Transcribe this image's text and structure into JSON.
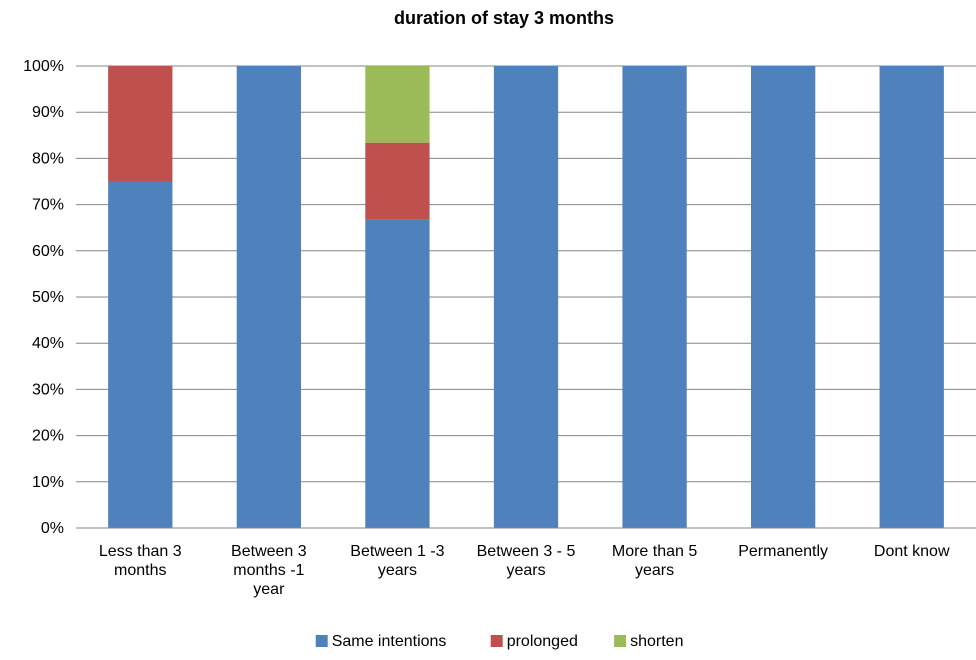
{
  "chart_data": {
    "type": "bar",
    "stacked": true,
    "title": "duration of stay 3 months",
    "xlabel": "",
    "ylabel": "",
    "ylim": [
      0,
      100
    ],
    "y_ticks": [
      "0%",
      "10%",
      "20%",
      "30%",
      "40%",
      "50%",
      "60%",
      "70%",
      "80%",
      "90%",
      "100%"
    ],
    "categories": [
      [
        "Less than 3",
        "months"
      ],
      [
        "Between 3",
        "months -1",
        "year"
      ],
      [
        "Between 1 -3",
        "years"
      ],
      [
        "Between 3 - 5",
        "years"
      ],
      [
        "More than 5",
        "years"
      ],
      [
        "Permanently"
      ],
      [
        "Dont know"
      ]
    ],
    "series": [
      {
        "name": "Same intentions",
        "color": "#4F81BD",
        "values": [
          75,
          100,
          66.7,
          100,
          100,
          100,
          100
        ]
      },
      {
        "name": "prolonged",
        "color": "#C0504D",
        "values": [
          25,
          0,
          16.7,
          0,
          0,
          0,
          0
        ]
      },
      {
        "name": "shorten",
        "color": "#9BBB59",
        "values": [
          0,
          0,
          16.6,
          0,
          0,
          0,
          0
        ]
      }
    ],
    "grid": true,
    "legend": "bottom"
  }
}
